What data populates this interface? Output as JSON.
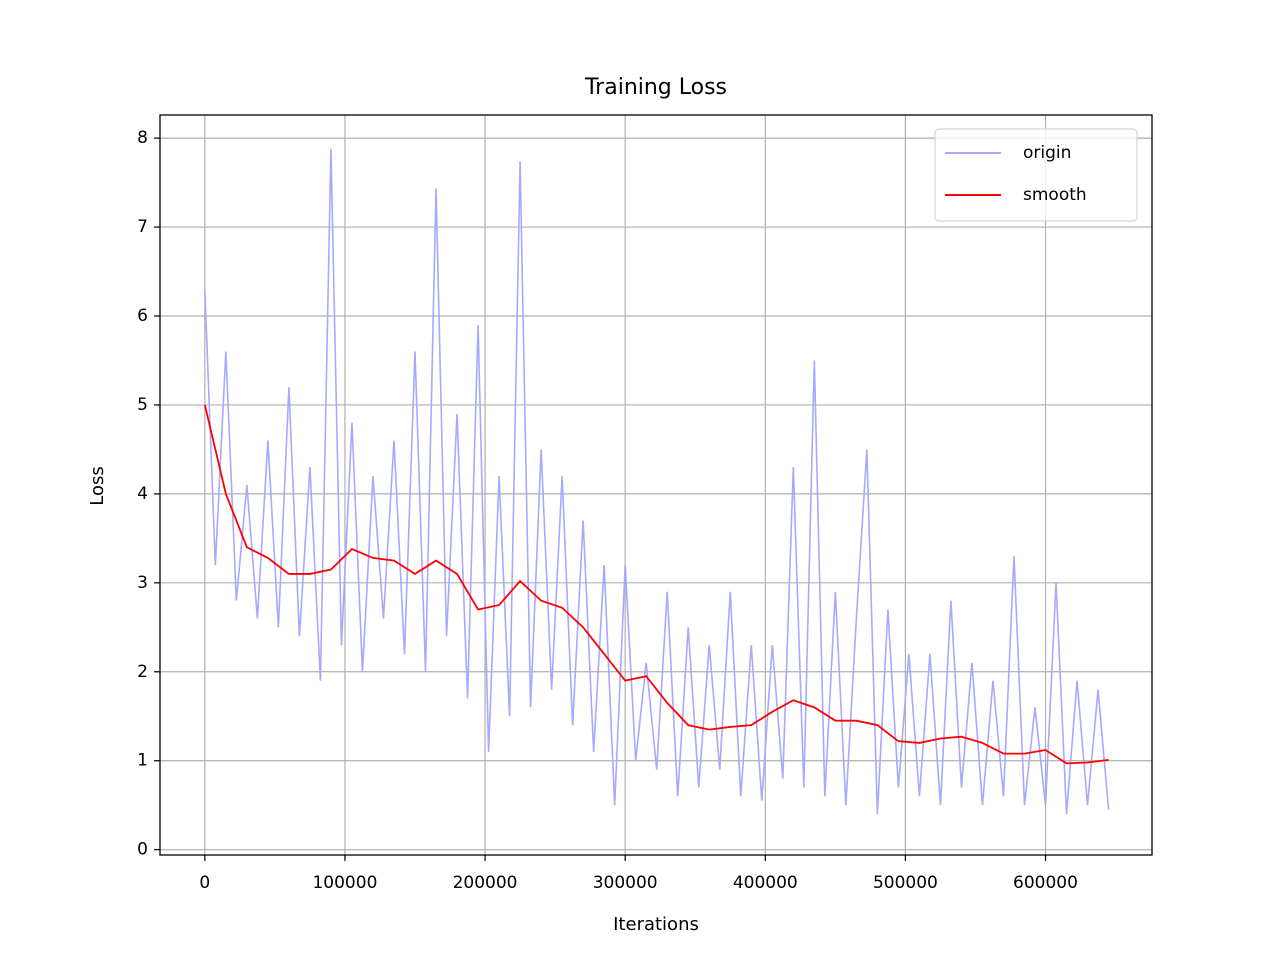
{
  "chart_data": {
    "type": "line",
    "title": "Training Loss",
    "x_label": "Iterations",
    "y_label": "Loss",
    "xlim": [
      -32000,
      676000
    ],
    "ylim": [
      -0.06,
      8.26
    ],
    "xticks": [
      0,
      100000,
      200000,
      300000,
      400000,
      500000,
      600000
    ],
    "yticks": [
      0,
      1,
      2,
      3,
      4,
      5,
      6,
      7,
      8
    ],
    "grid": true,
    "legend": "upper-right",
    "series": [
      {
        "name": "origin",
        "color": "#a8a8ff",
        "x": [
          0,
          7500,
          15000,
          22500,
          30000,
          37500,
          45000,
          52500,
          60000,
          67500,
          75000,
          82500,
          90000,
          97500,
          105000,
          112500,
          120000,
          127500,
          135000,
          142500,
          150000,
          157500,
          165000,
          172500,
          180000,
          187500,
          195000,
          202500,
          210000,
          217500,
          225000,
          232500,
          240000,
          247500,
          255000,
          262500,
          270000,
          277500,
          285000,
          292500,
          300000,
          307500,
          315000,
          322500,
          330000,
          337500,
          345000,
          352500,
          360000,
          367500,
          375000,
          382500,
          390000,
          397500,
          405000,
          412500,
          420000,
          427500,
          435000,
          442500,
          450000,
          457500,
          465000,
          472500,
          480000,
          487500,
          495000,
          502500,
          510000,
          517500,
          525000,
          532500,
          540000,
          547500,
          555000,
          562500,
          570000,
          577500,
          585000,
          592500,
          600000,
          607500,
          615000,
          622500,
          630000,
          637500,
          645000
        ],
        "values": [
          6.3,
          3.2,
          5.6,
          2.8,
          4.1,
          2.6,
          4.6,
          2.5,
          5.2,
          2.4,
          4.3,
          1.9,
          7.88,
          2.3,
          4.8,
          2.0,
          4.2,
          2.6,
          4.6,
          2.2,
          5.6,
          2.0,
          7.43,
          2.4,
          4.9,
          1.7,
          5.9,
          1.1,
          4.2,
          1.5,
          7.74,
          1.6,
          4.5,
          1.8,
          4.2,
          1.4,
          3.7,
          1.1,
          3.2,
          0.5,
          3.2,
          1.0,
          2.1,
          0.9,
          2.9,
          0.6,
          2.5,
          0.7,
          2.3,
          0.9,
          2.9,
          0.6,
          2.3,
          0.55,
          2.3,
          0.8,
          4.3,
          0.7,
          5.5,
          0.6,
          2.9,
          0.5,
          2.6,
          4.5,
          0.4,
          2.7,
          0.7,
          2.2,
          0.6,
          2.2,
          0.5,
          2.8,
          0.7,
          2.1,
          0.5,
          1.9,
          0.6,
          3.3,
          0.5,
          1.6,
          0.5,
          3.0,
          0.4,
          1.9,
          0.5,
          1.8,
          0.45
        ]
      },
      {
        "name": "smooth",
        "color": "#ff0000",
        "x": [
          0,
          15000,
          30000,
          45000,
          60000,
          75000,
          90000,
          105000,
          120000,
          135000,
          150000,
          165000,
          180000,
          195000,
          210000,
          225000,
          240000,
          255000,
          270000,
          285000,
          300000,
          315000,
          330000,
          345000,
          360000,
          375000,
          390000,
          405000,
          420000,
          435000,
          450000,
          465000,
          480000,
          495000,
          510000,
          525000,
          540000,
          555000,
          570000,
          585000,
          600000,
          615000,
          630000,
          645000
        ],
        "values": [
          5.0,
          4.0,
          3.4,
          3.28,
          3.1,
          3.1,
          3.15,
          3.38,
          3.28,
          3.25,
          3.1,
          3.25,
          3.1,
          2.7,
          2.75,
          3.02,
          2.8,
          2.72,
          2.5,
          2.2,
          1.9,
          1.95,
          1.65,
          1.4,
          1.35,
          1.38,
          1.4,
          1.55,
          1.68,
          1.6,
          1.45,
          1.45,
          1.4,
          1.22,
          1.2,
          1.25,
          1.27,
          1.2,
          1.08,
          1.08,
          1.12,
          0.97,
          0.98,
          1.01
        ]
      }
    ]
  }
}
